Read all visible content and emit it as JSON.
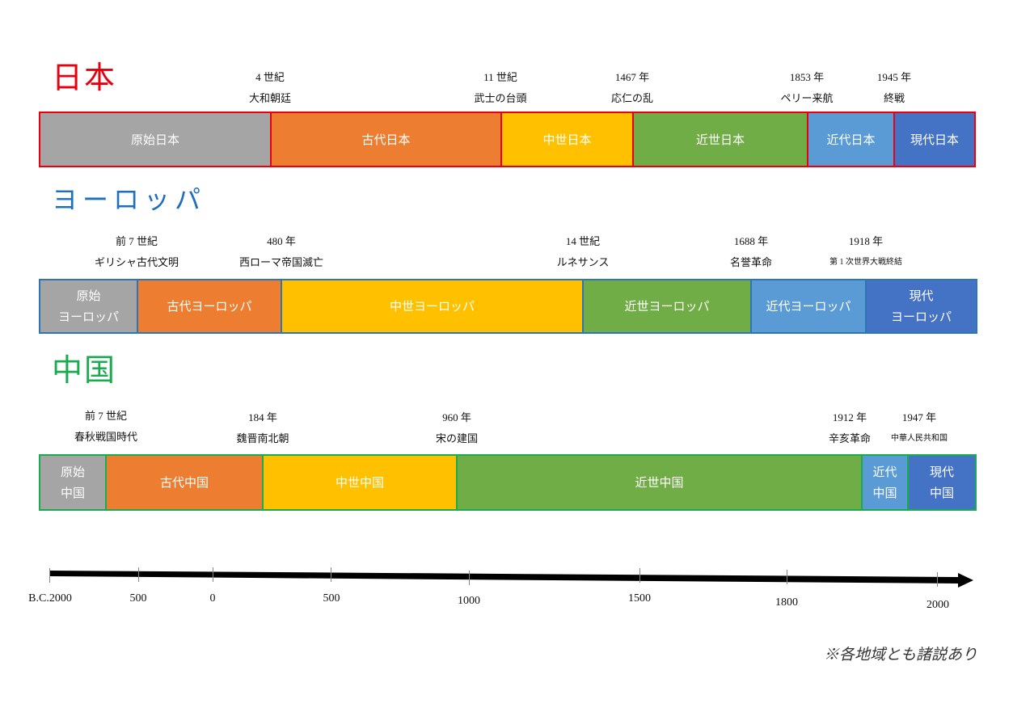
{
  "japan": {
    "title": "日本",
    "color": "#e8000f",
    "events": [
      {
        "year": "4 世紀",
        "name": "大和朝廷"
      },
      {
        "year": "11 世紀",
        "name": "武士の台頭"
      },
      {
        "year": "1467 年",
        "name": "応仁の乱"
      },
      {
        "year": "1853 年",
        "name": "ペリー来航"
      },
      {
        "year": "1945 年",
        "name": "終戦"
      }
    ],
    "periods": [
      "原始日本",
      "古代日本",
      "中世日本",
      "近世日本",
      "近代日本",
      "現代日本"
    ]
  },
  "europe": {
    "title": "ヨーロッパ",
    "color": "#1f6fbf",
    "events": [
      {
        "year": "前 7 世紀",
        "name": "ギリシャ古代文明"
      },
      {
        "year": "480 年",
        "name": "西ローマ帝国滅亡"
      },
      {
        "year": "14 世紀",
        "name": "ルネサンス"
      },
      {
        "year": "1688 年",
        "name": "名誉革命"
      },
      {
        "year": "1918 年",
        "name": "第 1 次世界大戦終結"
      }
    ],
    "periods": [
      "原始\nヨーロッパ",
      "古代ヨーロッパ",
      "中世ヨーロッパ",
      "近世ヨーロッパ",
      "近代ヨーロッパ",
      "現代\nヨーロッパ"
    ]
  },
  "china": {
    "title": "中国",
    "color": "#1aaa4f",
    "events": [
      {
        "year": "前 7 世紀",
        "name": "春秋戦国時代"
      },
      {
        "year": "184 年",
        "name": "魏晋南北朝"
      },
      {
        "year": "960 年",
        "name": "宋の建国"
      },
      {
        "year": "1912 年",
        "name": "辛亥革命"
      },
      {
        "year": "1947 年",
        "name": "中華人民共和国"
      }
    ],
    "periods": [
      "原始\n中国",
      "古代中国",
      "中世中国",
      "近世中国",
      "近代\n中国",
      "現代\n中国"
    ]
  },
  "period_colors": {
    "primitive": "#a5a5a5",
    "ancient": "#ed7d31",
    "medieval": "#ffc000",
    "early_modern": "#70ad47",
    "modern": "#5b9bd5",
    "contemporary": "#4472c4"
  },
  "axis": {
    "labels": [
      "B.C.2000",
      "500",
      "0",
      "500",
      "1000",
      "1500",
      "1800",
      "2000"
    ]
  },
  "note": "※各地域とも諸説あり"
}
